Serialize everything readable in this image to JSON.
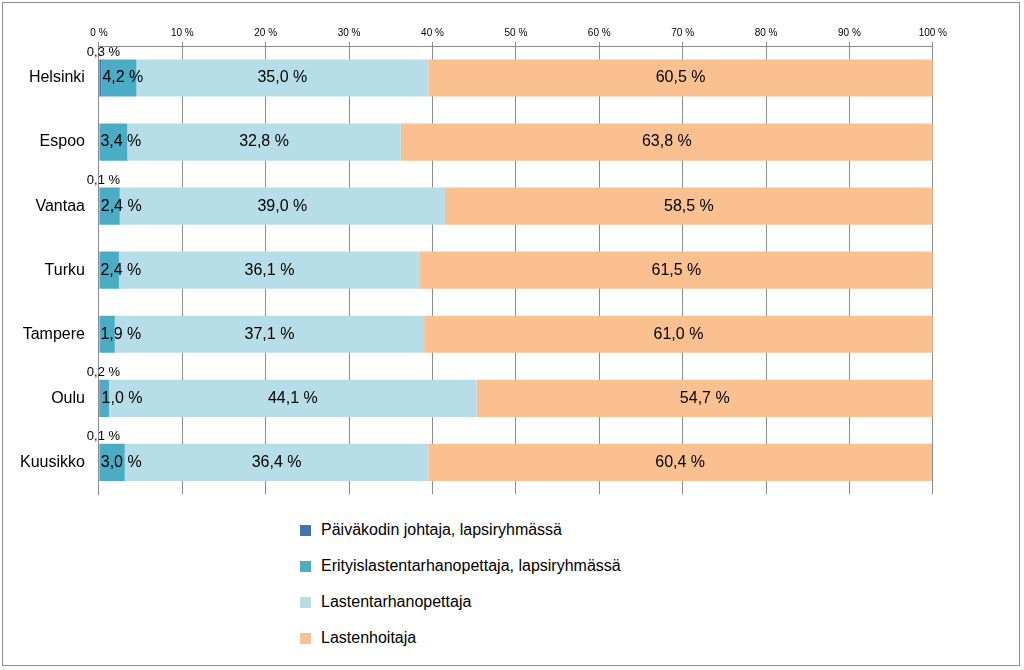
{
  "chart_data": {
    "type": "bar",
    "orientation": "horizontal",
    "stacked": true,
    "data_labels": true,
    "grid": true,
    "legend": "bottom",
    "categories": [
      "Helsinki",
      "Espoo",
      "Vantaa",
      "Turku",
      "Tampere",
      "Oulu",
      "Kuusikko"
    ],
    "xlim": [
      0,
      100
    ],
    "xticks": [
      {
        "value": 0,
        "label": "0 %"
      },
      {
        "value": 10,
        "label": "10 %"
      },
      {
        "value": 20,
        "label": "20 %"
      },
      {
        "value": 30,
        "label": "30 %"
      },
      {
        "value": 40,
        "label": "40 %"
      },
      {
        "value": 50,
        "label": "50 %"
      },
      {
        "value": 60,
        "label": "60 %"
      },
      {
        "value": 70,
        "label": "70 %"
      },
      {
        "value": 80,
        "label": "80 %"
      },
      {
        "value": 90,
        "label": "90 %"
      },
      {
        "value": 100,
        "label": "100 %"
      }
    ],
    "series": [
      {
        "name": "Päiväkodin johtaja, lapsiryhmässä",
        "color": "#3f73b3",
        "values": [
          0.3,
          0,
          0.1,
          0,
          0,
          0.2,
          0.1
        ],
        "value_labels": [
          "0,3 %",
          null,
          "0,1 %",
          null,
          null,
          "0,2 %",
          "0,1 %"
        ]
      },
      {
        "name": "Erityislastentarhanopettaja, lapsiryhmässä",
        "color": "#4bacc6",
        "values": [
          4.2,
          3.4,
          2.4,
          2.4,
          1.9,
          1.0,
          3.0
        ],
        "value_labels": [
          "4,2 %",
          "3,4 %",
          "2,4 %",
          "2,4 %",
          "1,9 %",
          "1,0 %",
          "3,0 %"
        ]
      },
      {
        "name": "Lastentarhanopettaja",
        "color": "#b7dee8",
        "values": [
          35.0,
          32.8,
          39.0,
          36.1,
          37.1,
          44.1,
          36.4
        ],
        "value_labels": [
          "35,0 %",
          "32,8 %",
          "39,0 %",
          "36,1 %",
          "37,1 %",
          "44,1 %",
          "36,4 %"
        ]
      },
      {
        "name": "Lastenhoitaja",
        "color": "#fac090",
        "values": [
          60.5,
          63.8,
          58.5,
          61.5,
          61.0,
          54.7,
          60.4
        ],
        "value_labels": [
          "60,5 %",
          "63,8 %",
          "58,5 %",
          "61,5 %",
          "61,0 %",
          "54,7 %",
          "60,4 %"
        ]
      }
    ]
  }
}
